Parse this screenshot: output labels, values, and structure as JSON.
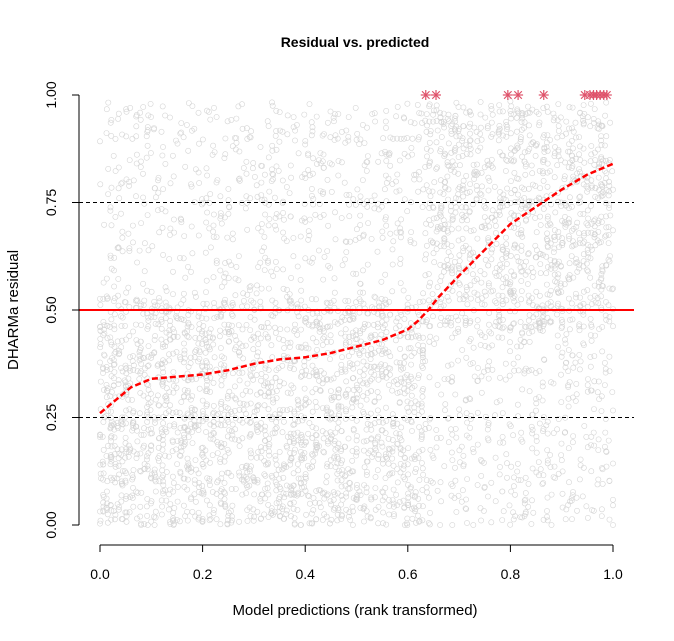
{
  "chart_data": {
    "type": "scatter",
    "title": "Residual vs. predicted",
    "xlabel": "Model predictions (rank transformed)",
    "ylabel": "DHARMa residual",
    "xlim": [
      0.0,
      1.0
    ],
    "ylim": [
      0.0,
      1.0
    ],
    "x_ticks": [
      "0.0",
      "0.2",
      "0.4",
      "0.6",
      "0.8",
      "1.0"
    ],
    "y_ticks": [
      "0.00",
      "0.25",
      "0.50",
      "0.75",
      "1.00"
    ],
    "grid": false,
    "colors": {
      "points": "#b3b3b3",
      "outliers": "#df536b",
      "reference_line": "#ff0000",
      "quantile_curve": "#ff0000",
      "quantile_lines": "#000000"
    },
    "reference_lines": {
      "solid": [
        0.5
      ],
      "dashed": [
        0.25,
        0.75
      ]
    },
    "quantile_curve": {
      "style": "dashed",
      "x": [
        0.0,
        0.03,
        0.06,
        0.1,
        0.15,
        0.2,
        0.25,
        0.3,
        0.35,
        0.4,
        0.45,
        0.5,
        0.55,
        0.6,
        0.62,
        0.64,
        0.66,
        0.7,
        0.75,
        0.8,
        0.85,
        0.9,
        0.95,
        1.0
      ],
      "y": [
        0.26,
        0.29,
        0.32,
        0.34,
        0.345,
        0.35,
        0.36,
        0.375,
        0.385,
        0.39,
        0.4,
        0.415,
        0.43,
        0.455,
        0.475,
        0.5,
        0.53,
        0.58,
        0.64,
        0.7,
        0.74,
        0.78,
        0.815,
        0.84
      ]
    },
    "outliers": {
      "marker": "asterisk",
      "y": 1.0,
      "x": [
        0.635,
        0.655,
        0.795,
        0.815,
        0.865,
        0.945,
        0.955,
        0.962,
        0.968,
        0.975,
        0.982,
        0.988
      ]
    },
    "scatter_points": {
      "marker": "open-circle",
      "description_count": 5000
    }
  }
}
